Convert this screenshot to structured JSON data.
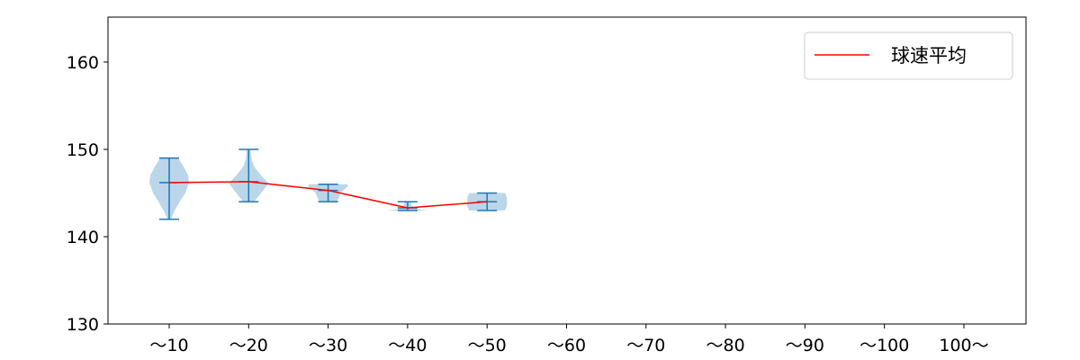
{
  "chart_data": {
    "type": "violin",
    "categories": [
      "～10",
      "～20",
      "～30",
      "～40",
      "～50",
      "～60",
      "～70",
      "～80",
      "～90",
      "～100",
      "100～"
    ],
    "series": [
      {
        "name": "球速平均",
        "color": "#ff0000",
        "values": [
          146.2,
          146.3,
          145.3,
          143.3,
          144.0,
          null,
          null,
          null,
          null,
          null,
          null
        ]
      }
    ],
    "violins": [
      {
        "category": "～10",
        "min": 142,
        "max": 149,
        "mean": 146.2
      },
      {
        "category": "～20",
        "min": 144,
        "max": 150,
        "mean": 146.3
      },
      {
        "category": "～30",
        "min": 144,
        "max": 146,
        "mean": 145.3
      },
      {
        "category": "～40",
        "min": 143,
        "max": 144,
        "mean": 143.3
      },
      {
        "category": "～50",
        "min": 143,
        "max": 145,
        "mean": 144.0
      }
    ],
    "violin_color": "#1f77b4",
    "ylim": [
      130,
      165
    ],
    "yticks": [
      130,
      140,
      150,
      160
    ],
    "grid": false,
    "legend": "top-right",
    "xlabel": "",
    "ylabel": "",
    "title": ""
  }
}
